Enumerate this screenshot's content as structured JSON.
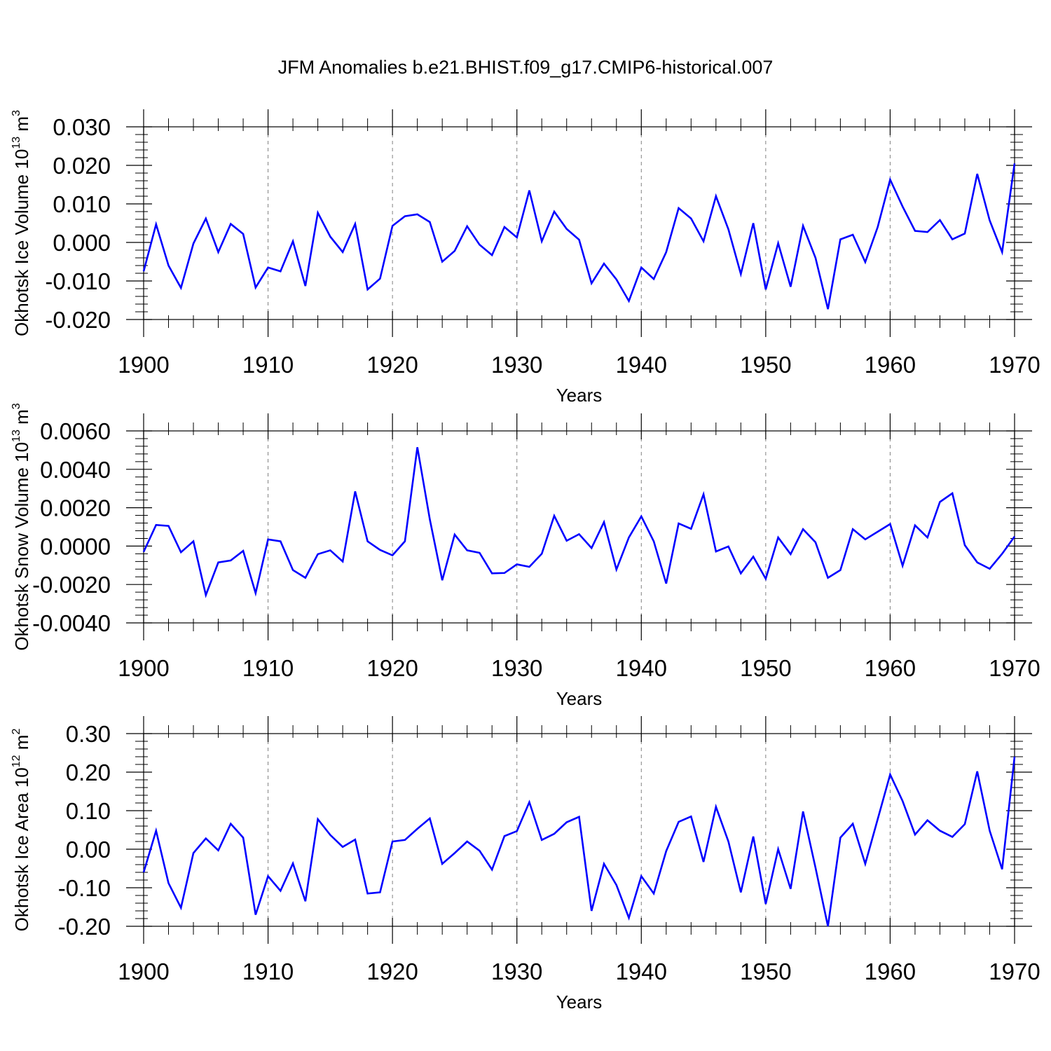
{
  "title": "JFM Anomalies b.e21.BHIST.f09_g17.CMIP6-historical.007",
  "line_color": "#0000ff",
  "chart_data": [
    {
      "type": "line",
      "xlabel": "Years",
      "ylabel": {
        "text": "Okhotsk Ice Volume 10",
        "exp": "13",
        "unit": " m",
        "unit_exp": "3"
      },
      "xlim": [
        1900,
        1970
      ],
      "ylim": [
        -0.02,
        0.03
      ],
      "xticks": [
        1900,
        1910,
        1920,
        1930,
        1940,
        1950,
        1960,
        1970
      ],
      "xtick_labels": [
        "1900",
        "1910",
        "1920",
        "1930",
        "1940",
        "1950",
        "1960",
        "1970"
      ],
      "yticks": [
        -0.02,
        -0.01,
        0.0,
        0.01,
        0.02,
        0.03
      ],
      "ytick_labels": [
        "-0.020",
        "-0.010",
        "0.000",
        "0.010",
        "0.020",
        "0.030"
      ],
      "grid": "vertical-dashed",
      "x_start": 1900,
      "values": [
        -0.0075,
        0.0047,
        -0.006,
        -0.0118,
        -0.0003,
        0.0062,
        -0.0025,
        0.0048,
        0.0022,
        -0.0117,
        -0.0065,
        -0.0075,
        0.0003,
        -0.0113,
        0.0077,
        0.0015,
        -0.0025,
        0.0048,
        -0.0122,
        -0.0094,
        0.0043,
        0.0068,
        0.0073,
        0.0053,
        -0.005,
        -0.0022,
        0.0042,
        -0.0006,
        -0.0033,
        0.004,
        0.0013,
        0.0135,
        0.0003,
        0.008,
        0.0035,
        0.0007,
        -0.0106,
        -0.0055,
        -0.0096,
        -0.0152,
        -0.0065,
        -0.0095,
        -0.0025,
        0.0089,
        0.0062,
        0.0003,
        0.012,
        0.0034,
        -0.0082,
        0.005,
        -0.0122,
        -0.0002,
        -0.0115,
        0.0043,
        -0.004,
        -0.0173,
        0.0008,
        0.002,
        -0.0051,
        0.004,
        0.0163,
        0.0093,
        0.003,
        0.0027,
        0.0058,
        0.0008,
        0.0023,
        0.0178,
        0.0057,
        -0.0025,
        0.0205
      ]
    },
    {
      "type": "line",
      "xlabel": "Years",
      "ylabel": {
        "text": "Okhotsk Snow Volume 10",
        "exp": "13",
        "unit": " m",
        "unit_exp": "3"
      },
      "xlim": [
        1900,
        1970
      ],
      "ylim": [
        -0.004,
        0.006
      ],
      "xticks": [
        1900,
        1910,
        1920,
        1930,
        1940,
        1950,
        1960,
        1970
      ],
      "xtick_labels": [
        "1900",
        "1910",
        "1920",
        "1930",
        "1940",
        "1950",
        "1960",
        "1970"
      ],
      "yticks": [
        -0.004,
        -0.002,
        0.0,
        0.002,
        0.004,
        0.006
      ],
      "ytick_labels": [
        "-0.0040",
        "-0.0020",
        "0.0000",
        "0.0020",
        "0.0040",
        "0.0060"
      ],
      "grid": "vertical-dashed",
      "x_start": 1900,
      "values": [
        -0.0003,
        0.0011,
        0.00105,
        -0.00032,
        0.00025,
        -0.00255,
        -0.00085,
        -0.00075,
        -0.00025,
        -0.00245,
        0.00035,
        0.00025,
        -0.00125,
        -0.00165,
        -0.00042,
        -0.00022,
        -0.0008,
        0.00285,
        0.00025,
        -0.0002,
        -0.00048,
        0.00025,
        0.00515,
        0.0014,
        -0.00178,
        0.0006,
        -0.00022,
        -0.00035,
        -0.00142,
        -0.0014,
        -0.00095,
        -0.00108,
        -0.0004,
        0.00158,
        0.00028,
        0.00062,
        -0.0001,
        0.00125,
        -0.00122,
        0.00045,
        0.00155,
        0.00025,
        -0.00195,
        0.00118,
        0.0009,
        0.0027,
        -0.00028,
        -2e-05,
        -0.00142,
        -0.00055,
        -0.0017,
        0.00045,
        -0.00042,
        0.00088,
        0.0002,
        -0.00165,
        -0.00125,
        0.00088,
        0.00035,
        0.00075,
        0.00115,
        -0.00102,
        0.00108,
        0.00045,
        0.0023,
        0.00275,
        5e-05,
        -0.00085,
        -0.00118,
        -0.0004,
        0.0005
      ]
    },
    {
      "type": "line",
      "xlabel": "Years",
      "ylabel": {
        "text": "Okhotsk Ice Area 10",
        "exp": "12",
        "unit": " m",
        "unit_exp": "2"
      },
      "xlim": [
        1900,
        1970
      ],
      "ylim": [
        -0.2,
        0.3
      ],
      "xticks": [
        1900,
        1910,
        1920,
        1930,
        1940,
        1950,
        1960,
        1970
      ],
      "xtick_labels": [
        "1900",
        "1910",
        "1920",
        "1930",
        "1940",
        "1950",
        "1960",
        "1970"
      ],
      "yticks": [
        -0.2,
        -0.1,
        0.0,
        0.1,
        0.2,
        0.3
      ],
      "ytick_labels": [
        "-0.20",
        "-0.10",
        "0.00",
        "0.10",
        "0.20",
        "0.30"
      ],
      "grid": "vertical-dashed",
      "x_start": 1900,
      "values": [
        -0.06,
        0.048,
        -0.088,
        -0.152,
        -0.01,
        0.028,
        -0.003,
        0.066,
        0.03,
        -0.17,
        -0.07,
        -0.108,
        -0.037,
        -0.135,
        0.078,
        0.037,
        0.006,
        0.025,
        -0.115,
        -0.112,
        0.02,
        0.024,
        0.053,
        0.08,
        -0.038,
        -0.01,
        0.02,
        -0.004,
        -0.053,
        0.034,
        0.047,
        0.122,
        0.024,
        0.04,
        0.07,
        0.084,
        -0.16,
        -0.038,
        -0.093,
        -0.178,
        -0.07,
        -0.115,
        -0.005,
        0.071,
        0.085,
        -0.033,
        0.11,
        0.02,
        -0.112,
        0.033,
        -0.142,
        0.0,
        -0.103,
        0.098,
        -0.048,
        -0.2,
        0.03,
        0.066,
        -0.038,
        0.078,
        0.194,
        0.125,
        0.038,
        0.075,
        0.048,
        0.032,
        0.065,
        0.202,
        0.048,
        -0.052,
        0.24
      ]
    }
  ]
}
